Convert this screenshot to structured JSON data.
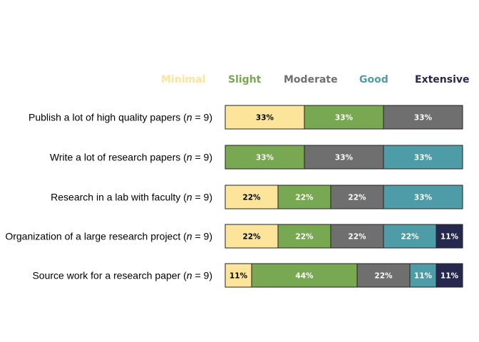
{
  "chart_data": {
    "type": "bar",
    "orientation": "horizontal",
    "stacked": "percent",
    "title": "",
    "xlabel": "",
    "ylabel": "",
    "legend_position": "top-right",
    "grid": false,
    "series": [
      {
        "name": "Minimal",
        "color": "#fce59a",
        "text_color": "#000000"
      },
      {
        "name": "Slight",
        "color": "#79a852",
        "text_color": "#ffffff"
      },
      {
        "name": "Moderate",
        "color": "#6f6f6f",
        "text_color": "#ffffff"
      },
      {
        "name": "Good",
        "color": "#4e9ca7",
        "text_color": "#ffffff"
      },
      {
        "name": "Extensive",
        "color": "#27284d",
        "text_color": "#ffffff"
      }
    ],
    "legend_text_colors": [
      "#fce59a",
      "#79a852",
      "#6f6f6f",
      "#4e9ca7",
      "#27284d"
    ],
    "rows": [
      {
        "label": "Publish a lot of high quality papers (",
        "n_var": "n",
        "n_rest": " = 9)",
        "values": [
          33,
          33,
          33,
          0,
          0
        ],
        "labels": [
          "33%",
          "33%",
          "33%",
          "",
          ""
        ]
      },
      {
        "label": "Write a lot of research papers (",
        "n_var": "n",
        "n_rest": " = 9)",
        "values": [
          0,
          33,
          33,
          33,
          0
        ],
        "labels": [
          "",
          "33%",
          "33%",
          "33%",
          ""
        ]
      },
      {
        "label": "Research in a lab with faculty (",
        "n_var": "n",
        "n_rest": " = 9)",
        "values": [
          22,
          22,
          22,
          33,
          0
        ],
        "labels": [
          "22%",
          "22%",
          "22%",
          "33%",
          ""
        ]
      },
      {
        "label": "Organization of a large research project (",
        "n_var": "n",
        "n_rest": " = 9)",
        "values": [
          22,
          22,
          22,
          22,
          11
        ],
        "labels": [
          "22%",
          "22%",
          "22%",
          "22%",
          "11%"
        ]
      },
      {
        "label": "Source work for a research paper (",
        "n_var": "n",
        "n_rest": " = 9)",
        "values": [
          11,
          44,
          22,
          11,
          11
        ],
        "labels": [
          "11%",
          "44%",
          "22%",
          "11%",
          "11%"
        ]
      }
    ]
  }
}
